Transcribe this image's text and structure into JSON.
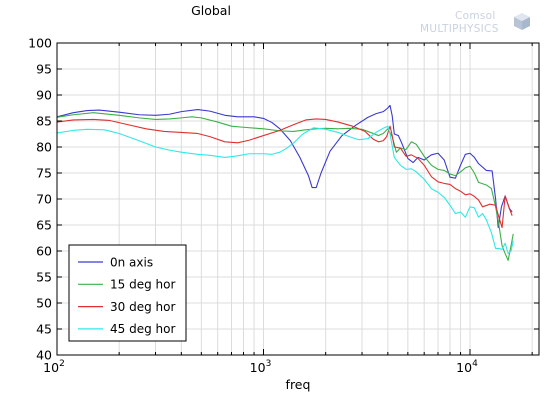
{
  "chart_data": {
    "type": "line",
    "title": "Global",
    "xlabel": "freq",
    "ylabel": "",
    "xscale": "log",
    "xlim": [
      100,
      20000
    ],
    "ylim": [
      40,
      100
    ],
    "yticks": [
      "40",
      "45",
      "50",
      "55",
      "60",
      "65",
      "70",
      "75",
      "80",
      "85",
      "90",
      "95",
      "100"
    ],
    "xticks": [
      {
        "base": "10",
        "exp": "2"
      },
      {
        "base": "10",
        "exp": "3"
      },
      {
        "base": "10",
        "exp": "4"
      }
    ],
    "grid": true,
    "legend_position": "bottom-left",
    "series": [
      {
        "name": "0n axis",
        "color": "#3a3ad0",
        "points": [
          [
            100,
            85.8
          ],
          [
            120,
            86.6
          ],
          [
            140,
            87.0
          ],
          [
            160,
            87.1
          ],
          [
            200,
            86.7
          ],
          [
            250,
            86.2
          ],
          [
            300,
            86.1
          ],
          [
            350,
            86.3
          ],
          [
            400,
            86.8
          ],
          [
            480,
            87.2
          ],
          [
            550,
            86.9
          ],
          [
            650,
            86.1
          ],
          [
            750,
            85.8
          ],
          [
            900,
            85.8
          ],
          [
            1000,
            85.5
          ],
          [
            1100,
            84.7
          ],
          [
            1200,
            83.5
          ],
          [
            1350,
            81.2
          ],
          [
            1500,
            78.0
          ],
          [
            1650,
            74.5
          ],
          [
            1720,
            72.2
          ],
          [
            1800,
            72.2
          ],
          [
            1900,
            75.0
          ],
          [
            2100,
            79.2
          ],
          [
            2400,
            82.2
          ],
          [
            2800,
            84.2
          ],
          [
            3200,
            85.7
          ],
          [
            3500,
            86.4
          ],
          [
            3800,
            86.8
          ],
          [
            4000,
            87.5
          ],
          [
            4100,
            88.0
          ],
          [
            4200,
            86.0
          ],
          [
            4300,
            82.5
          ],
          [
            4500,
            82.2
          ],
          [
            4700,
            80.5
          ],
          [
            5000,
            77.8
          ],
          [
            5300,
            77.0
          ],
          [
            5600,
            78.0
          ],
          [
            6000,
            77.5
          ],
          [
            6500,
            78.5
          ],
          [
            7000,
            78.8
          ],
          [
            7500,
            77.5
          ],
          [
            8000,
            74.2
          ],
          [
            8500,
            74.0
          ],
          [
            9000,
            76.5
          ],
          [
            9500,
            78.6
          ],
          [
            10000,
            78.8
          ],
          [
            10500,
            78.0
          ],
          [
            11000,
            76.8
          ],
          [
            12000,
            75.5
          ],
          [
            12800,
            75.4
          ],
          [
            13300,
            70.0
          ],
          [
            13700,
            64.5
          ],
          [
            14200,
            68.5
          ],
          [
            14800,
            70.6
          ],
          [
            15500,
            68.2
          ],
          [
            16000,
            67.5
          ]
        ]
      },
      {
        "name": "15 deg hor",
        "color": "#3cb04a",
        "points": [
          [
            100,
            85.7
          ],
          [
            120,
            86.2
          ],
          [
            150,
            86.6
          ],
          [
            200,
            86.1
          ],
          [
            250,
            85.6
          ],
          [
            300,
            85.3
          ],
          [
            350,
            85.4
          ],
          [
            400,
            85.6
          ],
          [
            450,
            85.8
          ],
          [
            500,
            85.6
          ],
          [
            600,
            84.8
          ],
          [
            700,
            84.0
          ],
          [
            800,
            83.8
          ],
          [
            1000,
            83.5
          ],
          [
            1200,
            83.1
          ],
          [
            1400,
            83.0
          ],
          [
            1600,
            83.3
          ],
          [
            1800,
            83.5
          ],
          [
            2000,
            83.6
          ],
          [
            2300,
            83.5
          ],
          [
            2600,
            83.6
          ],
          [
            3000,
            83.4
          ],
          [
            3300,
            82.8
          ],
          [
            3600,
            82.2
          ],
          [
            3800,
            82.6
          ],
          [
            4000,
            83.5
          ],
          [
            4200,
            82.0
          ],
          [
            4400,
            79.0
          ],
          [
            4600,
            79.8
          ],
          [
            4900,
            79.5
          ],
          [
            5200,
            81.0
          ],
          [
            5500,
            80.5
          ],
          [
            6000,
            78.2
          ],
          [
            6500,
            76.5
          ],
          [
            7000,
            75.7
          ],
          [
            7500,
            75.5
          ],
          [
            8000,
            74.8
          ],
          [
            8500,
            74.5
          ],
          [
            9000,
            75.2
          ],
          [
            9500,
            76.0
          ],
          [
            10000,
            76.3
          ],
          [
            10500,
            75.0
          ],
          [
            11000,
            73.2
          ],
          [
            12000,
            72.7
          ],
          [
            12700,
            72.0
          ],
          [
            13300,
            68.5
          ],
          [
            13800,
            65.0
          ],
          [
            14300,
            61.0
          ],
          [
            14800,
            59.5
          ],
          [
            15300,
            58.2
          ],
          [
            15800,
            61.0
          ],
          [
            16200,
            63.3
          ]
        ]
      },
      {
        "name": "30 deg hor",
        "color": "#e03030",
        "points": [
          [
            100,
            84.8
          ],
          [
            120,
            85.2
          ],
          [
            150,
            85.3
          ],
          [
            180,
            85.1
          ],
          [
            220,
            84.3
          ],
          [
            270,
            83.5
          ],
          [
            330,
            83.0
          ],
          [
            400,
            82.8
          ],
          [
            480,
            82.6
          ],
          [
            550,
            82.0
          ],
          [
            650,
            81.0
          ],
          [
            750,
            80.8
          ],
          [
            850,
            81.3
          ],
          [
            1000,
            82.2
          ],
          [
            1200,
            83.2
          ],
          [
            1400,
            84.3
          ],
          [
            1600,
            85.2
          ],
          [
            1800,
            85.4
          ],
          [
            2000,
            85.3
          ],
          [
            2300,
            84.8
          ],
          [
            2700,
            84.0
          ],
          [
            3100,
            83.0
          ],
          [
            3400,
            81.5
          ],
          [
            3600,
            81.0
          ],
          [
            3800,
            81.2
          ],
          [
            3950,
            82.0
          ],
          [
            4100,
            84.0
          ],
          [
            4200,
            82.2
          ],
          [
            4300,
            80.0
          ],
          [
            4600,
            79.8
          ],
          [
            4900,
            78.2
          ],
          [
            5200,
            78.5
          ],
          [
            5600,
            77.8
          ],
          [
            6000,
            76.5
          ],
          [
            6500,
            74.3
          ],
          [
            7000,
            73.3
          ],
          [
            7500,
            73.0
          ],
          [
            8000,
            72.8
          ],
          [
            8500,
            72.0
          ],
          [
            9000,
            71.5
          ],
          [
            9500,
            70.8
          ],
          [
            10000,
            71.0
          ],
          [
            10500,
            70.5
          ],
          [
            11000,
            69.8
          ],
          [
            11500,
            68.5
          ],
          [
            12500,
            69.0
          ],
          [
            13300,
            68.8
          ],
          [
            13800,
            66.5
          ],
          [
            14300,
            64.5
          ],
          [
            14800,
            70.6
          ],
          [
            15500,
            68.2
          ],
          [
            16000,
            66.8
          ]
        ]
      },
      {
        "name": "45 deg hor",
        "color": "#30e8e8",
        "points": [
          [
            100,
            82.7
          ],
          [
            120,
            83.2
          ],
          [
            140,
            83.4
          ],
          [
            170,
            83.3
          ],
          [
            200,
            82.6
          ],
          [
            250,
            81.2
          ],
          [
            300,
            80.0
          ],
          [
            350,
            79.4
          ],
          [
            400,
            79.0
          ],
          [
            480,
            78.6
          ],
          [
            550,
            78.4
          ],
          [
            650,
            78.0
          ],
          [
            750,
            78.3
          ],
          [
            850,
            78.7
          ],
          [
            1000,
            78.7
          ],
          [
            1100,
            78.6
          ],
          [
            1200,
            79.0
          ],
          [
            1300,
            79.8
          ],
          [
            1400,
            80.8
          ],
          [
            1550,
            82.5
          ],
          [
            1750,
            83.7
          ],
          [
            2000,
            83.4
          ],
          [
            2300,
            82.8
          ],
          [
            2600,
            82.0
          ],
          [
            2900,
            81.4
          ],
          [
            3200,
            81.6
          ],
          [
            3500,
            82.8
          ],
          [
            3800,
            83.6
          ],
          [
            4000,
            84.0
          ],
          [
            4100,
            82.5
          ],
          [
            4300,
            78.0
          ],
          [
            4600,
            76.5
          ],
          [
            4900,
            75.7
          ],
          [
            5200,
            75.8
          ],
          [
            5500,
            75.2
          ],
          [
            6000,
            73.8
          ],
          [
            6500,
            72.0
          ],
          [
            7000,
            71.3
          ],
          [
            7500,
            70.3
          ],
          [
            8000,
            68.8
          ],
          [
            8500,
            67.2
          ],
          [
            9000,
            67.5
          ],
          [
            9500,
            66.5
          ],
          [
            10000,
            68.5
          ],
          [
            10500,
            68.3
          ],
          [
            11000,
            66.5
          ],
          [
            11500,
            67.2
          ],
          [
            12000,
            66.0
          ],
          [
            12700,
            63.5
          ],
          [
            13300,
            60.5
          ],
          [
            13800,
            60.5
          ],
          [
            14300,
            60.3
          ],
          [
            14800,
            61.5
          ],
          [
            15300,
            59.5
          ],
          [
            15800,
            60.0
          ],
          [
            16200,
            62.0
          ]
        ]
      }
    ]
  },
  "watermark": {
    "line1": "Comsol",
    "line2": "MULTIPHYSICS"
  }
}
